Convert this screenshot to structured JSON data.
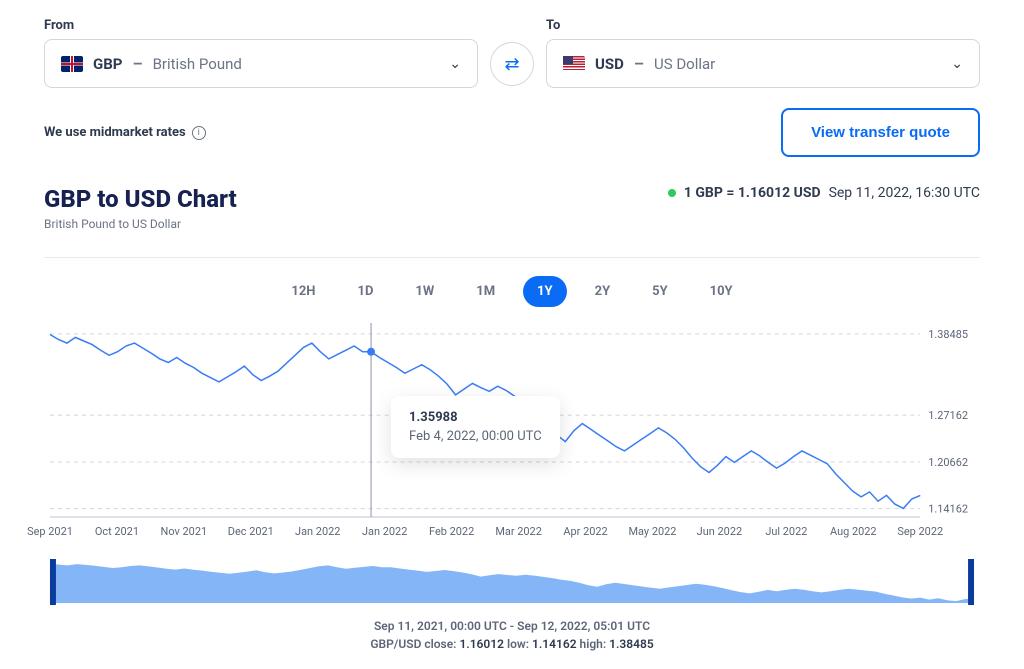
{
  "from": {
    "label": "From",
    "code": "GBP",
    "name": "British Pound"
  },
  "to": {
    "label": "To",
    "code": "USD",
    "name": "US Dollar"
  },
  "midrate_text": "We use midmarket rates",
  "quote_button": "View transfer quote",
  "chart_title": "GBP to USD Chart",
  "chart_subtitle": "British Pound to US Dollar",
  "current_rate": {
    "lhs": "1 GBP",
    "op": "=",
    "rhs": "1.16012 USD",
    "timestamp": "Sep 11, 2022, 16:30 UTC"
  },
  "ranges": [
    "12H",
    "1D",
    "1W",
    "1M",
    "1Y",
    "2Y",
    "5Y",
    "10Y"
  ],
  "active_range": "1Y",
  "tooltip": {
    "value": "1.35988",
    "datetime": "Feb 4, 2022, 00:00 UTC"
  },
  "footer_range": "Sep 11, 2021, 00:00 UTC - Sep 12, 2022, 05:01 UTC",
  "footer_stats": {
    "close_label": "close:",
    "close": "1.16012",
    "low_label": "low:",
    "low": "1.14162",
    "high_label": "high:",
    "high": "1.38485"
  },
  "chart": {
    "type": "line",
    "color": "#3b7cf5",
    "background": "#ffffff",
    "grid_color": "#d1d6e0",
    "line_width": 1.5,
    "y_ticks": [
      1.38485,
      1.27162,
      1.20662,
      1.14162
    ],
    "ymin": 1.13,
    "ymax": 1.4,
    "x_labels": [
      "Sep 2021",
      "Oct 2021",
      "Nov 2021",
      "Dec 2021",
      "Jan 2022",
      "Jan 2022",
      "Feb 2022",
      "Mar 2022",
      "Apr 2022",
      "May 2022",
      "Jun 2022",
      "Jul 2022",
      "Aug 2022",
      "Sep 2022"
    ],
    "hover_index": 38,
    "series": [
      1.384,
      1.377,
      1.372,
      1.38,
      1.375,
      1.37,
      1.362,
      1.355,
      1.36,
      1.368,
      1.372,
      1.365,
      1.358,
      1.35,
      1.345,
      1.352,
      1.344,
      1.338,
      1.33,
      1.324,
      1.318,
      1.325,
      1.332,
      1.34,
      1.328,
      1.32,
      1.326,
      1.333,
      1.344,
      1.355,
      1.366,
      1.372,
      1.36,
      1.35,
      1.356,
      1.362,
      1.368,
      1.36,
      1.36,
      1.352,
      1.345,
      1.338,
      1.33,
      1.336,
      1.342,
      1.335,
      1.326,
      1.315,
      1.3,
      1.308,
      1.316,
      1.31,
      1.305,
      1.312,
      1.306,
      1.298,
      1.29,
      1.28,
      1.272,
      1.26,
      1.244,
      1.235,
      1.25,
      1.26,
      1.252,
      1.244,
      1.236,
      1.228,
      1.222,
      1.23,
      1.238,
      1.246,
      1.254,
      1.247,
      1.238,
      1.226,
      1.212,
      1.2,
      1.192,
      1.202,
      1.214,
      1.206,
      1.214,
      1.222,
      1.215,
      1.206,
      1.198,
      1.205,
      1.214,
      1.222,
      1.216,
      1.21,
      1.204,
      1.19,
      1.178,
      1.166,
      1.158,
      1.165,
      1.152,
      1.16,
      1.148,
      1.142,
      1.155,
      1.16
    ]
  }
}
